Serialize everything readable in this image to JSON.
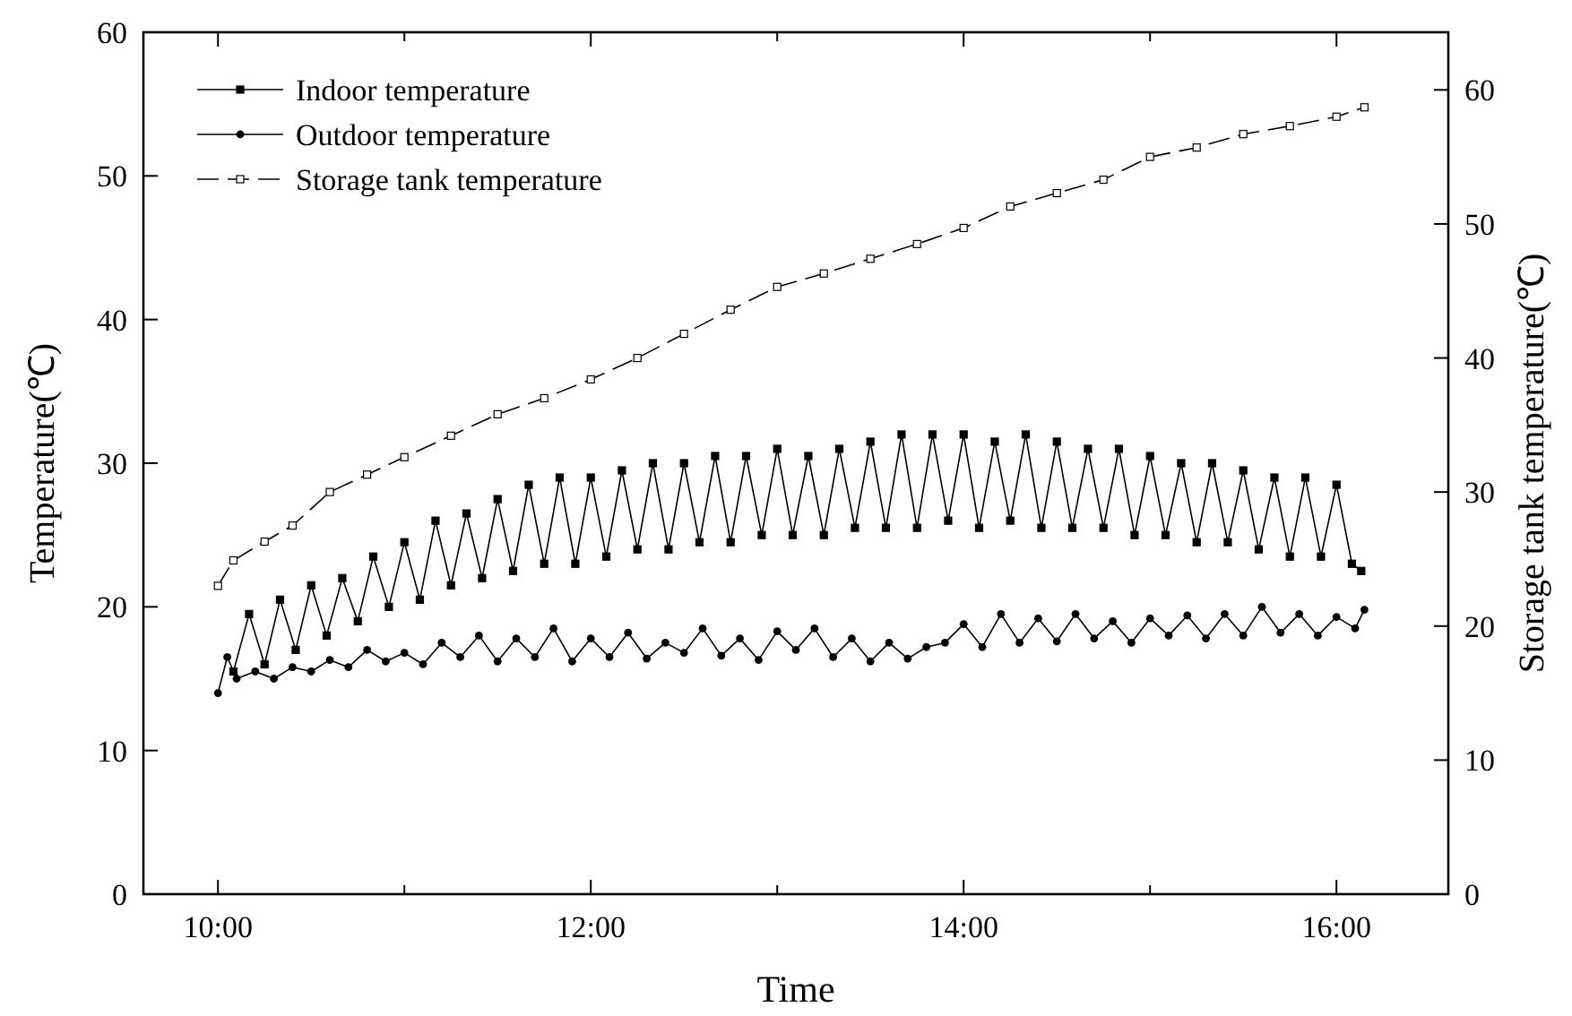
{
  "chart_data": {
    "type": "line",
    "xlabel": "Time",
    "ylabel": "Temperature(℃)",
    "y2label": "Storage tank temperature(℃)",
    "xlim": [
      9.6,
      16.6
    ],
    "xticks": [
      {
        "value": 10,
        "label": "10:00"
      },
      {
        "value": 11,
        "label": null
      },
      {
        "value": 12,
        "label": "12:00"
      },
      {
        "value": 13,
        "label": null
      },
      {
        "value": 14,
        "label": "14:00"
      },
      {
        "value": 15,
        "label": null
      },
      {
        "value": 16,
        "label": "16:00"
      }
    ],
    "ylim": [
      0,
      60
    ],
    "yticks": [
      0,
      10,
      20,
      30,
      40,
      50,
      60
    ],
    "y2lim": [
      0,
      64.3
    ],
    "y2ticks": [
      0,
      10,
      20,
      30,
      40,
      50,
      60
    ],
    "legend": "top left",
    "grid": false,
    "series": [
      {
        "name": "Indoor temperature",
        "color": "#000000",
        "marker": "square",
        "line_style": "solid",
        "x": [
          10.083,
          10.167,
          10.25,
          10.333,
          10.417,
          10.5,
          10.583,
          10.667,
          10.75,
          10.833,
          10.917,
          11,
          11.083,
          11.167,
          11.25,
          11.333,
          11.417,
          11.5,
          11.583,
          11.667,
          11.75,
          11.833,
          11.917,
          12,
          12.083,
          12.167,
          12.25,
          12.333,
          12.417,
          12.5,
          12.583,
          12.667,
          12.75,
          12.833,
          12.917,
          13,
          13.083,
          13.167,
          13.25,
          13.333,
          13.417,
          13.5,
          13.583,
          13.667,
          13.75,
          13.833,
          13.917,
          14,
          14.083,
          14.167,
          14.25,
          14.333,
          14.417,
          14.5,
          14.583,
          14.667,
          14.75,
          14.833,
          14.917,
          15,
          15.083,
          15.167,
          15.25,
          15.333,
          15.417,
          15.5,
          15.583,
          15.667,
          15.75,
          15.833,
          15.917,
          16,
          16.083,
          16.133
        ],
        "values": [
          15.5,
          19.5,
          16,
          20.5,
          17,
          21.5,
          18,
          22,
          19,
          23.5,
          20,
          24.5,
          20.5,
          26,
          21.5,
          26.5,
          22,
          27.5,
          22.5,
          28.5,
          23,
          29,
          23,
          29,
          23.5,
          29.5,
          24,
          30,
          24,
          30,
          24.5,
          30.5,
          24.5,
          30.5,
          25,
          31,
          25,
          30.5,
          25,
          31,
          25.5,
          31.5,
          25.5,
          32,
          25.5,
          32,
          26,
          32,
          25.5,
          31.5,
          26,
          32,
          25.5,
          31.5,
          25.5,
          31,
          25.5,
          31,
          25,
          30.5,
          25,
          30,
          24.5,
          30,
          24.5,
          29.5,
          24,
          29,
          23.5,
          29,
          23.5,
          28.5,
          23,
          22.5
        ]
      },
      {
        "name": "Outdoor temperature",
        "color": "#000000",
        "marker": "circle",
        "line_style": "solid",
        "x": [
          10,
          10.05,
          10.1,
          10.2,
          10.3,
          10.4,
          10.5,
          10.6,
          10.7,
          10.8,
          10.9,
          11,
          11.1,
          11.2,
          11.3,
          11.4,
          11.5,
          11.6,
          11.7,
          11.8,
          11.9,
          12,
          12.1,
          12.2,
          12.3,
          12.4,
          12.5,
          12.6,
          12.7,
          12.8,
          12.9,
          13,
          13.1,
          13.2,
          13.3,
          13.4,
          13.5,
          13.6,
          13.7,
          13.8,
          13.9,
          14,
          14.1,
          14.2,
          14.3,
          14.4,
          14.5,
          14.6,
          14.7,
          14.8,
          14.9,
          15,
          15.1,
          15.2,
          15.3,
          15.4,
          15.5,
          15.6,
          15.7,
          15.8,
          15.9,
          16,
          16.1,
          16.15
        ],
        "values": [
          14,
          16.5,
          15,
          15.5,
          15,
          15.8,
          15.5,
          16.3,
          15.8,
          17,
          16.2,
          16.8,
          16,
          17.5,
          16.5,
          18,
          16.2,
          17.8,
          16.5,
          18.5,
          16.2,
          17.8,
          16.5,
          18.2,
          16.4,
          17.5,
          16.8,
          18.5,
          16.6,
          17.8,
          16.3,
          18.3,
          17,
          18.5,
          16.5,
          17.8,
          16.2,
          17.5,
          16.4,
          17.2,
          17.5,
          18.8,
          17.2,
          19.5,
          17.5,
          19.2,
          17.6,
          19.5,
          17.8,
          19,
          17.5,
          19.2,
          18,
          19.4,
          17.8,
          19.5,
          18,
          20,
          18.2,
          19.5,
          18,
          19.3,
          18.5,
          19.8
        ]
      },
      {
        "name": "Storage tank temperature",
        "color": "#000000",
        "marker": "square",
        "line_style": "dashed",
        "axis": "y2",
        "x": [
          10,
          10.083,
          10.25,
          10.4,
          10.6,
          10.8,
          11,
          11.25,
          11.5,
          11.75,
          12,
          12.25,
          12.5,
          12.75,
          13,
          13.25,
          13.5,
          13.75,
          14,
          14.25,
          14.5,
          14.75,
          15,
          15.25,
          15.5,
          15.75,
          16,
          16.15
        ],
        "values": [
          23,
          24.9,
          26.3,
          27.5,
          30,
          31.3,
          32.6,
          34.2,
          35.8,
          37,
          38.4,
          40,
          41.8,
          43.6,
          45.3,
          46.3,
          47.4,
          48.5,
          49.7,
          51.3,
          52.3,
          53.3,
          55,
          55.7,
          56.7,
          57.3,
          58,
          58.7
        ]
      }
    ]
  }
}
